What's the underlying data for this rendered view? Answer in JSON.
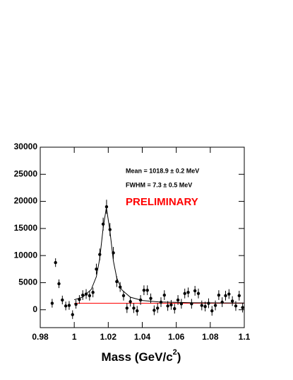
{
  "chart_data": {
    "type": "errorbar-fit",
    "annotations": [
      "Mean = 1018.9 ± 0.2 MeV",
      "FWHM = 7.3 ± 0.5 MeV"
    ],
    "preliminary": "PRELIMINARY",
    "preliminary_color": "#ff0000",
    "x_label": {
      "text": "Mass (GeV/c",
      "sup": "2",
      "end": ")"
    },
    "xlim": [
      0.98,
      1.1
    ],
    "ylim": [
      -3300,
      30000
    ],
    "xticks": [
      0.98,
      1,
      1.02,
      1.04,
      1.06,
      1.08,
      1.1
    ],
    "yticks": [
      0,
      5000,
      10000,
      15000,
      20000,
      25000,
      30000
    ],
    "points": {
      "color": "#000000",
      "x": [
        0.987,
        0.989,
        0.991,
        0.993,
        0.995,
        0.997,
        0.999,
        1.001,
        1.003,
        1.005,
        1.007,
        1.009,
        1.011,
        1.013,
        1.015,
        1.017,
        1.019,
        1.021,
        1.023,
        1.025,
        1.027,
        1.029,
        1.031,
        1.033,
        1.035,
        1.037,
        1.039,
        1.041,
        1.043,
        1.045,
        1.047,
        1.049,
        1.051,
        1.053,
        1.055,
        1.057,
        1.059,
        1.061,
        1.063,
        1.065,
        1.067,
        1.069,
        1.071,
        1.073,
        1.075,
        1.077,
        1.079,
        1.081,
        1.083,
        1.085,
        1.087,
        1.089,
        1.091,
        1.093,
        1.095,
        1.097,
        1.099
      ],
      "values": [
        1200,
        8700,
        4800,
        1800,
        700,
        800,
        -900,
        1000,
        1900,
        2700,
        2900,
        2600,
        3200,
        7500,
        10200,
        15800,
        19000,
        14800,
        10500,
        5200,
        4200,
        2600,
        300,
        1500,
        300,
        -200,
        1800,
        3600,
        3600,
        2100,
        -100,
        300,
        1400,
        2700,
        700,
        900,
        200,
        1800,
        1100,
        3000,
        3200,
        1100,
        3500,
        3000,
        800,
        600,
        1200,
        -200,
        800,
        2700,
        1400,
        2600,
        2900,
        1600,
        700,
        2600,
        400
      ],
      "errors": [
        800,
        800,
        800,
        800,
        800,
        800,
        800,
        800,
        800,
        900,
        900,
        900,
        900,
        1000,
        1100,
        1200,
        1300,
        1200,
        1100,
        1000,
        900,
        900,
        900,
        900,
        900,
        900,
        900,
        900,
        900,
        900,
        900,
        900,
        900,
        900,
        900,
        900,
        900,
        900,
        900,
        900,
        900,
        900,
        900,
        900,
        900,
        900,
        900,
        900,
        900,
        900,
        900,
        900,
        900,
        900,
        900,
        900,
        900
      ]
    },
    "fit": {
      "color": "#000000",
      "x": [
        1.0,
        1.005,
        1.01,
        1.013,
        1.015,
        1.017,
        1.0189,
        1.021,
        1.023,
        1.025,
        1.028,
        1.033,
        1.04,
        1.05,
        1.07,
        1.1
      ],
      "values": [
        1840,
        2340,
        3750,
        6100,
        9460,
        15100,
        18900,
        14500,
        9030,
        5870,
        3660,
        2310,
        1710,
        1440,
        1290,
        1240
      ]
    },
    "background": {
      "color": "#ff0000",
      "x": [
        1.0,
        1.1
      ],
      "values": [
        1200,
        1200
      ]
    }
  }
}
